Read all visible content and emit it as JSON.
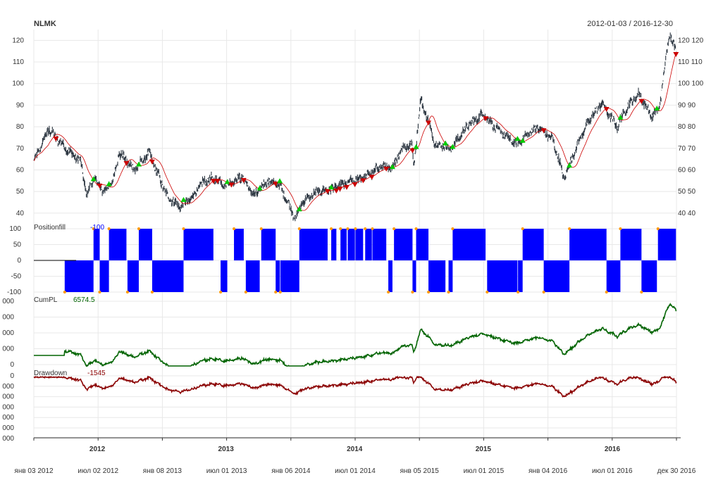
{
  "header": {
    "symbol": "NLMK",
    "date_range": "2012-01-03 / 2016-12-30"
  },
  "colors": {
    "price": "#333333",
    "ma": "#cc0000",
    "position": "#0000ff",
    "position_marker": "#ff9900",
    "cumpl": "#006400",
    "drawdown": "#8b0000",
    "buy_marker": "#00cc00",
    "sell_marker": "#cc0000",
    "grid": "#e8e8e8"
  },
  "chart_data": [
    {
      "type": "",
      "title": "NLMK",
      "x_start": "2012-01-03",
      "x_end": "2016-12-30",
      "ylim": [
        37,
        125
      ],
      "y_ticks": [
        "120",
        "110",
        "100",
        "90",
        "80",
        "70",
        "60",
        "50",
        "40"
      ],
      "y_ticks_right": [
        "120 120",
        "110 110",
        "100 100",
        "90 90",
        "80 80",
        "70 70",
        "60 60",
        "50 50",
        "40 40"
      ],
      "x": [
        "2012-01-03",
        "2012-02-15",
        "2012-04-01",
        "2012-05-15",
        "2012-06-01",
        "2012-06-20",
        "2012-07-20",
        "2012-08-15",
        "2012-09-01",
        "2012-10-15",
        "2012-11-25",
        "2012-12-20",
        "2013-01-15",
        "2013-02-20",
        "2013-03-25",
        "2013-05-01",
        "2013-06-01",
        "2013-07-01",
        "2013-08-15",
        "2013-09-20",
        "2013-10-25",
        "2013-12-01",
        "2014-01-15",
        "2014-02-01",
        "2014-03-01",
        "2014-03-20",
        "2014-05-15",
        "2014-07-01",
        "2014-08-15",
        "2014-09-15",
        "2014-10-15",
        "2014-11-10",
        "2014-12-10",
        "2014-12-16",
        "2015-01-05",
        "2015-02-15",
        "2015-04-01",
        "2015-05-15",
        "2015-07-01",
        "2015-08-15",
        "2015-10-01",
        "2015-12-01",
        "2016-01-15",
        "2016-02-15",
        "2016-04-01",
        "2016-05-05",
        "2016-06-01",
        "2016-07-15",
        "2016-08-15",
        "2016-09-15",
        "2016-10-20",
        "2016-11-10",
        "2016-11-25",
        "2016-12-10",
        "2016-12-30"
      ],
      "series": [
        {
          "name": "",
          "values": [
            64,
            79,
            70,
            64,
            48,
            56,
            50,
            55,
            68,
            60,
            68,
            58,
            48,
            43,
            47,
            55,
            56,
            53,
            57,
            48,
            55,
            53,
            37,
            45,
            48,
            50,
            52,
            55,
            58,
            62,
            60,
            70,
            72,
            62,
            93,
            72,
            70,
            80,
            86,
            78,
            72,
            80,
            74,
            56,
            75,
            85,
            91,
            80,
            90,
            95,
            85,
            88,
            105,
            124,
            114
          ]
        }
      ]
    },
    {
      "type": "",
      "title": "Positionfill",
      "label_value": "-100",
      "ylim": [
        -100,
        100
      ],
      "y_ticks": [
        "100",
        "50",
        "0",
        "-50",
        "-100"
      ]
    },
    {
      "type": "",
      "title": "CumPL",
      "label_value": "6574.5",
      "y_ticks": [
        "000",
        "000",
        "000",
        "000",
        "0"
      ]
    },
    {
      "type": "",
      "title": "Drawdown",
      "label_value": "-1545",
      "y_ticks": [
        "0",
        "000",
        "000",
        "000",
        "000",
        "000",
        "000"
      ]
    }
  ],
  "x_axis": {
    "years": [
      "2012",
      "2013",
      "2014",
      "2015",
      "2016"
    ],
    "date_labels": [
      "янв 03 2012",
      "июл 02 2012",
      "янв 08 2013",
      "июл 01 2013",
      "янв 06 2014",
      "июл 01 2014",
      "янв 05 2015",
      "июл 01 2015",
      "янв 04 2016",
      "июл 01 2016",
      "дек 30 2016"
    ]
  }
}
